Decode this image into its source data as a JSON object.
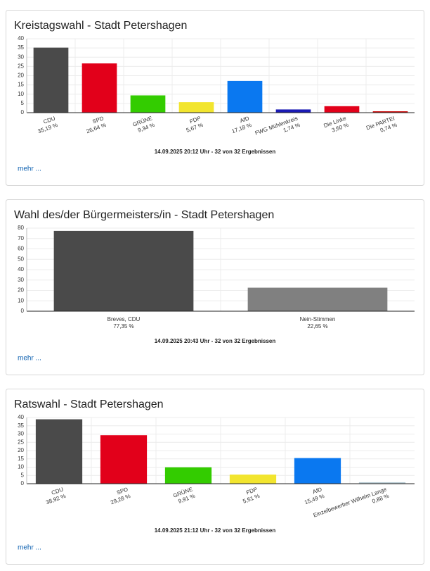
{
  "chart_data": [
    {
      "type": "bar",
      "title": "Kreistagswahl - Stadt Petershagen",
      "categories": [
        "CDU",
        "SPD",
        "GRÜNE",
        "FDP",
        "AfD",
        "FWG Mühlenkreis",
        "Die Linke",
        "Die PARTEI"
      ],
      "values": [
        35.19,
        26.64,
        9.34,
        5.67,
        17.18,
        1.74,
        3.5,
        0.74
      ],
      "value_labels": [
        "35,19 %",
        "26,64 %",
        "9,34 %",
        "5,67 %",
        "17,18 %",
        "1,74 %",
        "3,50 %",
        "0,74 %"
      ],
      "colors": [
        "#4a4a4a",
        "#e2001a",
        "#33cc00",
        "#f2e52e",
        "#0a78f0",
        "#1a1ab4",
        "#e2001a",
        "#cc0a0a"
      ],
      "ylim": [
        0,
        40
      ],
      "yticks": [
        0,
        5,
        10,
        15,
        20,
        25,
        30,
        35,
        40
      ],
      "grid": true,
      "footer": "14.09.2025 20:12 Uhr - 32 von 32 Ergebnissen",
      "link": "mehr ..."
    },
    {
      "type": "bar",
      "title": "Wahl des/der Bürgermeisters/in - Stadt Petershagen",
      "categories": [
        "Breves, CDU",
        "Nein-Stimmen"
      ],
      "values": [
        77.35,
        22.65
      ],
      "value_labels": [
        "77,35 %",
        "22,65 %"
      ],
      "colors": [
        "#4a4a4a",
        "#808080"
      ],
      "ylim": [
        0,
        80
      ],
      "yticks": [
        0,
        10,
        20,
        30,
        40,
        50,
        60,
        70,
        80
      ],
      "grid": true,
      "footer": "14.09.2025 20:43 Uhr - 32 von 32 Ergebnissen",
      "link": "mehr ..."
    },
    {
      "type": "bar",
      "title": "Ratswahl - Stadt Petershagen",
      "categories": [
        "CDU",
        "SPD",
        "GRÜNE",
        "FDP",
        "AfD",
        "Einzelbewerber Wilhelm Lange"
      ],
      "values": [
        38.92,
        29.28,
        9.91,
        5.51,
        15.49,
        0.88
      ],
      "value_labels": [
        "38,92 %",
        "29,28 %",
        "9,91 %",
        "5,51 %",
        "15,49 %",
        "0,88 %"
      ],
      "colors": [
        "#4a4a4a",
        "#e2001a",
        "#33cc00",
        "#f2e52e",
        "#0a78f0",
        "#b4c8d0"
      ],
      "ylim": [
        0,
        40
      ],
      "yticks": [
        0,
        5,
        10,
        15,
        20,
        25,
        30,
        35,
        40
      ],
      "grid": true,
      "footer": "14.09.2025 21:12 Uhr - 32 von 32 Ergebnissen",
      "link": "mehr ..."
    }
  ]
}
